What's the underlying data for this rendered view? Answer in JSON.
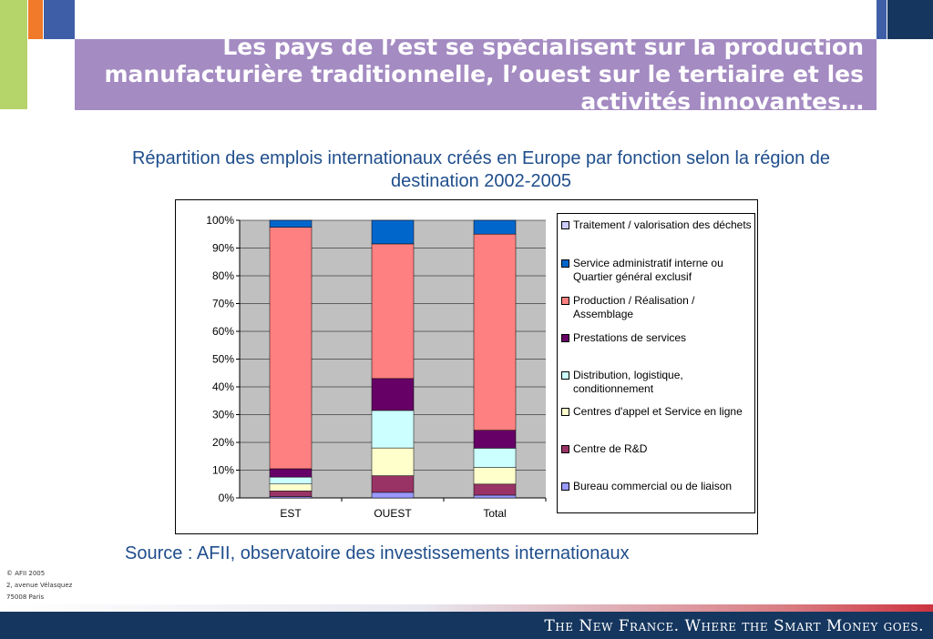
{
  "slide": {
    "title": "Les pays de l’est se spécialisent sur la production manufacturière traditionnelle,  l’ouest sur le tertiaire et les activités innovantes…",
    "source": "Source : AFII, observatoire des investissements internationaux",
    "footer_lines": [
      "© AFII 2005",
      "2, avenue Vélasquez",
      "75008 Paris"
    ],
    "tagline": "The New France. Where the Smart Money goes.",
    "colors": {
      "title_band": "#a48bc2",
      "footer": "#15365e",
      "accent_orange": "#f07a2a",
      "accent_green": "#b5d46a",
      "accent_blue": "#3e5fa8"
    }
  },
  "chart_data": {
    "type": "bar",
    "stacked": true,
    "percent": true,
    "title": "Répartition des emplois internationaux créés en Europe par fonction selon la région de destination 2002-2005",
    "categories": [
      "EST",
      "OUEST",
      "Total"
    ],
    "y_ticks": [
      "0%",
      "10%",
      "20%",
      "30%",
      "40%",
      "50%",
      "60%",
      "70%",
      "80%",
      "90%",
      "100%"
    ],
    "ylim": [
      0,
      100
    ],
    "grid": true,
    "legend_position": "right",
    "series": [
      {
        "name": "Bureau commercial ou de liaison",
        "color": "#9999ff",
        "values": [
          0.5,
          2,
          1
        ]
      },
      {
        "name": "Centre de R&D",
        "color": "#993366",
        "values": [
          2,
          6,
          4
        ]
      },
      {
        "name": "Centres d'appel et Service en ligne",
        "color": "#ffffcc",
        "values": [
          2.5,
          10,
          6
        ]
      },
      {
        "name": "Distribution, logistique, conditionnement",
        "color": "#ccffff",
        "values": [
          2.5,
          13.5,
          7
        ]
      },
      {
        "name": "Prestations de services",
        "color": "#660066",
        "values": [
          3,
          11.5,
          6.5
        ]
      },
      {
        "name": "Production / Réalisation / Assemblage",
        "color": "#ff8080",
        "values": [
          87,
          48.5,
          71
        ]
      },
      {
        "name": "Service administratif interne ou Quartier général exclusif",
        "color": "#0066cc",
        "values": [
          2.5,
          8.5,
          5
        ]
      },
      {
        "name": "Traitement / valorisation des déchets",
        "color": "#ccccff",
        "values": [
          0,
          0,
          0
        ]
      }
    ],
    "legend_order": [
      "Traitement / valorisation des déchets",
      "Service administratif interne ou Quartier général exclusif",
      "Production / Réalisation / Assemblage",
      "Prestations de services",
      "Distribution, logistique, conditionnement",
      "Centres d'appel et Service en ligne",
      "Centre de R&D",
      "Bureau commercial ou de liaison"
    ]
  }
}
